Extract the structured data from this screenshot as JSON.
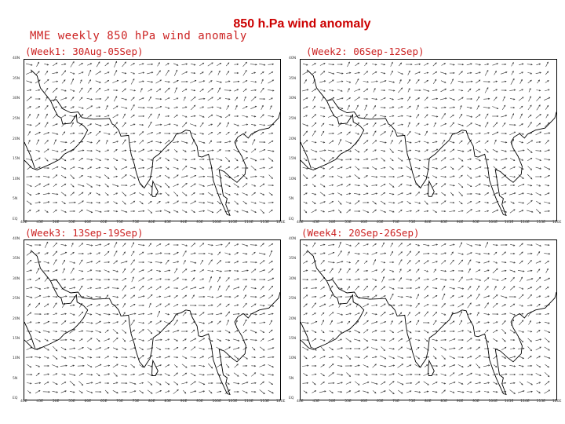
{
  "slide_title": "850 h.Pa  wind anomaly",
  "figure_title": "MME weekly 850 hPa wind anomaly",
  "panels": [
    {
      "label": "(Week1: 30Aug-05Sep)"
    },
    {
      "label": "(Week2: 06Sep-12Sep)"
    },
    {
      "label": "(Week3: 13Sep-19Sep)"
    },
    {
      "label": "(Week4: 20Sep-26Sep)"
    }
  ],
  "map": {
    "lat_ticks": [
      "40N",
      "35N",
      "30N",
      "25N",
      "20N",
      "15N",
      "10N",
      "5N",
      "EQ"
    ],
    "lon_ticks": [
      "40E",
      "45E",
      "50E",
      "55E",
      "60E",
      "65E",
      "70E",
      "75E",
      "80E",
      "85E",
      "90E",
      "95E",
      "100E",
      "105E",
      "110E",
      "115E",
      "120E"
    ],
    "coastline_color": "#000000",
    "vector_color": "#333333"
  }
}
